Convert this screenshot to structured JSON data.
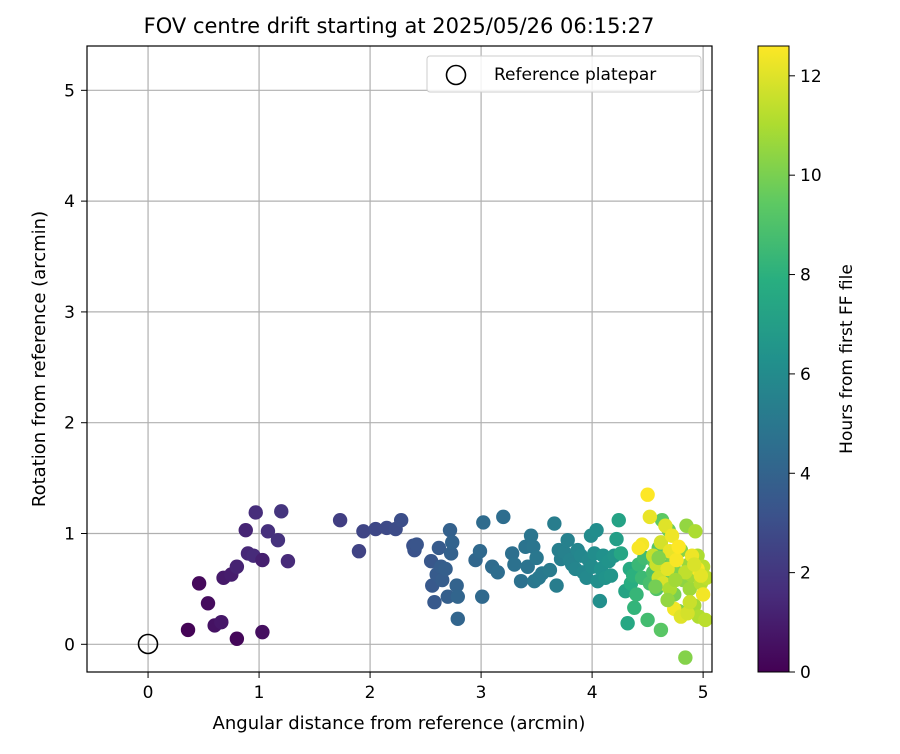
{
  "chart_data": {
    "type": "scatter",
    "title": "FOV centre drift starting at 2025/05/26 06:15:27",
    "xlabel": "Angular distance from reference (arcmin)",
    "ylabel": "Rotation from reference (arcmin)",
    "xlim": [
      -0.55,
      5.08
    ],
    "ylim": [
      -0.25,
      5.4
    ],
    "xticks": [
      0,
      1,
      2,
      3,
      4,
      5
    ],
    "yticks": [
      0,
      1,
      2,
      3,
      4,
      5
    ],
    "grid": true,
    "legend_position": "top-right",
    "reference": {
      "name": "Reference platepar",
      "x": 0,
      "y": 0,
      "marker": "open-circle"
    },
    "colorbar": {
      "label": "Hours from first FF file",
      "range": [
        0,
        12.6
      ],
      "ticks": [
        0,
        2,
        4,
        6,
        8,
        10,
        12
      ],
      "colormap": "viridis"
    },
    "series": [
      {
        "points": [
          [
            0.36,
            0.13,
            0.1
          ],
          [
            0.46,
            0.55,
            0.3
          ],
          [
            0.54,
            0.37,
            0.4
          ],
          [
            0.6,
            0.17,
            0.6
          ],
          [
            0.66,
            0.2,
            0.8
          ],
          [
            0.68,
            0.6,
            0.9
          ],
          [
            0.75,
            0.63,
            1.0
          ],
          [
            0.8,
            0.05,
            0.2
          ],
          [
            0.8,
            0.7,
            1.2
          ],
          [
            0.88,
            1.03,
            1.3
          ],
          [
            0.9,
            0.82,
            1.4
          ],
          [
            0.95,
            0.8,
            1.5
          ],
          [
            0.97,
            1.19,
            1.6
          ],
          [
            1.03,
            0.11,
            0.5
          ],
          [
            1.03,
            0.76,
            1.1
          ],
          [
            1.08,
            1.02,
            1.7
          ],
          [
            1.17,
            0.94,
            1.8
          ],
          [
            1.2,
            1.2,
            1.9
          ],
          [
            1.26,
            0.75,
            1.5
          ],
          [
            1.73,
            1.12,
            2.3
          ],
          [
            1.9,
            0.84,
            2.5
          ],
          [
            1.94,
            1.02,
            2.6
          ],
          [
            2.05,
            1.04,
            2.7
          ],
          [
            2.15,
            1.05,
            2.8
          ],
          [
            2.23,
            1.04,
            2.9
          ],
          [
            2.28,
            1.12,
            3.0
          ],
          [
            2.39,
            0.89,
            3.1
          ],
          [
            2.4,
            0.85,
            3.2
          ],
          [
            2.42,
            0.9,
            3.3
          ],
          [
            2.55,
            0.75,
            3.4
          ],
          [
            2.56,
            0.53,
            3.5
          ],
          [
            2.58,
            0.38,
            3.5
          ],
          [
            2.6,
            0.63,
            3.6
          ],
          [
            2.62,
            0.87,
            3.6
          ],
          [
            2.64,
            0.7,
            3.7
          ],
          [
            2.65,
            0.58,
            3.7
          ],
          [
            2.68,
            0.68,
            3.8
          ],
          [
            2.7,
            0.43,
            3.8
          ],
          [
            2.72,
            1.03,
            3.9
          ],
          [
            2.73,
            0.82,
            3.9
          ],
          [
            2.74,
            0.92,
            4.0
          ],
          [
            2.78,
            0.53,
            4.0
          ],
          [
            2.79,
            0.43,
            4.1
          ],
          [
            2.79,
            0.23,
            4.1
          ],
          [
            2.95,
            0.76,
            4.2
          ],
          [
            2.99,
            0.84,
            4.3
          ],
          [
            3.01,
            0.43,
            4.3
          ],
          [
            3.02,
            1.1,
            4.4
          ],
          [
            3.1,
            0.7,
            4.4
          ],
          [
            3.15,
            0.65,
            4.5
          ],
          [
            3.2,
            1.15,
            4.5
          ],
          [
            3.28,
            0.82,
            4.6
          ],
          [
            3.3,
            0.72,
            4.7
          ],
          [
            3.36,
            0.57,
            4.7
          ],
          [
            3.4,
            0.88,
            4.8
          ],
          [
            3.42,
            0.7,
            4.8
          ],
          [
            3.45,
            0.98,
            4.9
          ],
          [
            3.47,
            0.88,
            4.9
          ],
          [
            3.48,
            0.57,
            5.0
          ],
          [
            3.5,
            0.78,
            5.0
          ],
          [
            3.52,
            0.6,
            5.1
          ],
          [
            3.55,
            0.64,
            5.1
          ],
          [
            3.62,
            0.67,
            5.2
          ],
          [
            3.66,
            1.09,
            5.3
          ],
          [
            3.68,
            0.53,
            5.3
          ],
          [
            3.7,
            0.85,
            5.4
          ],
          [
            3.72,
            0.77,
            5.4
          ],
          [
            3.75,
            0.83,
            5.5
          ],
          [
            3.78,
            0.94,
            5.5
          ],
          [
            3.8,
            0.76,
            5.6
          ],
          [
            3.82,
            0.72,
            5.6
          ],
          [
            3.85,
            0.68,
            5.7
          ],
          [
            3.87,
            0.85,
            5.7
          ],
          [
            3.9,
            0.8,
            5.8
          ],
          [
            3.92,
            0.65,
            5.8
          ],
          [
            3.95,
            0.6,
            5.9
          ],
          [
            3.97,
            0.76,
            5.9
          ],
          [
            3.99,
            0.98,
            6.0
          ],
          [
            4.0,
            0.7,
            6.0
          ],
          [
            4.02,
            0.82,
            6.1
          ],
          [
            4.04,
            1.03,
            6.1
          ],
          [
            4.05,
            0.57,
            6.2
          ],
          [
            4.07,
            0.39,
            6.2
          ],
          [
            4.08,
            0.68,
            6.3
          ],
          [
            4.1,
            0.8,
            6.3
          ],
          [
            4.12,
            0.6,
            6.4
          ],
          [
            4.15,
            0.75,
            6.4
          ],
          [
            4.17,
            0.62,
            6.5
          ],
          [
            4.2,
            0.8,
            6.5
          ],
          [
            4.22,
            0.95,
            7.0
          ],
          [
            4.24,
            1.12,
            7.2
          ],
          [
            4.26,
            0.82,
            7.4
          ],
          [
            4.3,
            0.48,
            7.3
          ],
          [
            4.32,
            0.19,
            7.5
          ],
          [
            4.34,
            0.68,
            7.6
          ],
          [
            4.35,
            0.55,
            7.8
          ],
          [
            4.37,
            0.62,
            8.0
          ],
          [
            4.38,
            0.33,
            8.2
          ],
          [
            4.4,
            0.45,
            8.3
          ],
          [
            4.42,
            0.72,
            8.4
          ],
          [
            4.45,
            0.6,
            8.5
          ],
          [
            4.47,
            0.78,
            8.6
          ],
          [
            4.5,
            0.22,
            8.7
          ],
          [
            4.52,
            0.55,
            8.8
          ],
          [
            4.55,
            0.65,
            8.9
          ],
          [
            4.56,
            0.75,
            9.0
          ],
          [
            4.58,
            0.5,
            9.1
          ],
          [
            4.6,
            0.87,
            9.2
          ],
          [
            4.62,
            0.13,
            9.3
          ],
          [
            4.63,
            1.12,
            9.4
          ],
          [
            4.65,
            0.62,
            9.5
          ],
          [
            4.67,
            0.7,
            9.6
          ],
          [
            4.69,
            1.03,
            9.7
          ],
          [
            4.7,
            0.55,
            9.8
          ],
          [
            4.72,
            0.8,
            9.9
          ],
          [
            4.74,
            0.45,
            10.0
          ],
          [
            4.76,
            0.65,
            10.1
          ],
          [
            4.78,
            0.3,
            10.2
          ],
          [
            4.8,
            0.85,
            10.3
          ],
          [
            4.82,
            0.58,
            10.4
          ],
          [
            4.84,
            -0.12,
            10.2
          ],
          [
            4.85,
            1.07,
            10.5
          ],
          [
            4.87,
            0.72,
            10.6
          ],
          [
            4.88,
            0.5,
            10.7
          ],
          [
            4.9,
            0.62,
            10.8
          ],
          [
            4.92,
            0.35,
            10.9
          ],
          [
            4.93,
            1.02,
            11.0
          ],
          [
            4.95,
            0.8,
            11.0
          ],
          [
            4.96,
            0.25,
            11.1
          ],
          [
            4.98,
            0.55,
            11.2
          ],
          [
            5.0,
            0.7,
            11.3
          ],
          [
            5.02,
            0.22,
            11.3
          ],
          [
            5.03,
            0.6,
            11.4
          ],
          [
            4.55,
            0.8,
            11.5
          ],
          [
            4.58,
            0.72,
            11.6
          ],
          [
            4.6,
            0.6,
            11.7
          ],
          [
            4.62,
            0.92,
            11.8
          ],
          [
            4.64,
            0.55,
            11.9
          ],
          [
            4.66,
            1.07,
            12.0
          ],
          [
            4.68,
            0.68,
            12.1
          ],
          [
            4.7,
            0.84,
            12.2
          ],
          [
            4.72,
            0.98,
            12.3
          ],
          [
            4.74,
            0.32,
            12.4
          ],
          [
            4.76,
            0.76,
            12.5
          ],
          [
            4.78,
            0.88,
            12.6
          ],
          [
            4.52,
            1.15,
            12.2
          ],
          [
            4.5,
            1.35,
            12.6
          ],
          [
            4.45,
            0.9,
            12.4
          ],
          [
            4.42,
            0.87,
            12.5
          ],
          [
            4.8,
            0.25,
            12.0
          ],
          [
            4.86,
            0.28,
            11.8
          ],
          [
            4.9,
            0.8,
            12.3
          ],
          [
            4.95,
            0.68,
            12.5
          ],
          [
            5.0,
            0.45,
            12.4
          ],
          [
            4.98,
            0.62,
            12.1
          ],
          [
            4.84,
            0.65,
            11.4
          ],
          [
            4.88,
            0.38,
            11.6
          ],
          [
            4.92,
            0.72,
            11.9
          ],
          [
            4.7,
            0.5,
            11.0
          ],
          [
            4.75,
            0.58,
            10.8
          ],
          [
            4.68,
            0.4,
            10.5
          ],
          [
            4.6,
            0.78,
            10.2
          ],
          [
            4.57,
            0.52,
            9.9
          ]
        ]
      }
    ]
  }
}
